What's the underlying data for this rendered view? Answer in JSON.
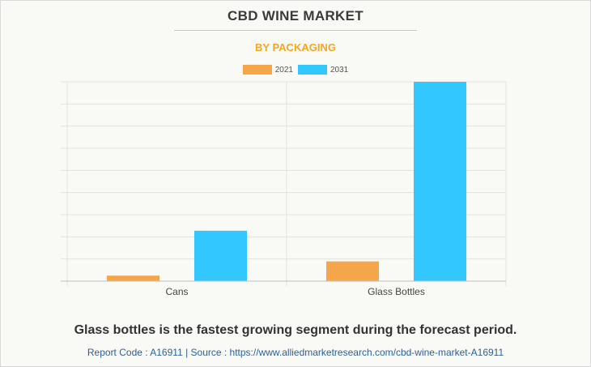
{
  "chart_data": {
    "type": "bar",
    "title": "CBD WINE MARKET",
    "subtitle": "BY PACKAGING",
    "categories": [
      "Cans",
      "Glass Bottles"
    ],
    "series": [
      {
        "name": "2021",
        "color": "#f5a54a",
        "values": [
          2.5,
          9
        ]
      },
      {
        "name": "2031",
        "color": "#33c7ff",
        "values": [
          23,
          91
        ]
      }
    ],
    "ylim": [
      0,
      91
    ],
    "grid": true,
    "legend_position": "top-center",
    "xlabel": "",
    "ylabel": ""
  },
  "colors": {
    "subtitle": "#f5a623",
    "grid": "#e2e2e2",
    "axis": "#bfbfbf"
  },
  "footer": {
    "caption": "Glass bottles is the fastest growing segment during the forecast period.",
    "source": "Report Code : A16911  |  Source : https://www.alliedmarketresearch.com/cbd-wine-market-A16911"
  }
}
